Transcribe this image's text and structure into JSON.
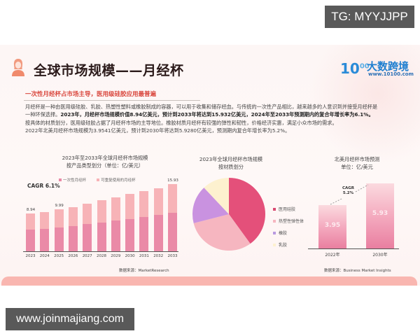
{
  "watermarks": {
    "top": "TG: MYYJJPP",
    "bottom": "www.joinmajiang.com"
  },
  "header": {
    "title": "全球市场规模——月经杯",
    "logo": {
      "mark": "10",
      "mark_sup": "00",
      "name": "大数跨境",
      "url": "www.10100.com"
    }
  },
  "section": {
    "subhead": "一次性月经杯占市场主导，医用级硅胶应用最普遍",
    "paragraph": {
      "line1": "月经杯是一种由医用级硅胶、乳胶、热塑性塑料或橡胶制成的容器，可以用于收集和储存经血。与传统的一次性产品相比，越来越多的人意识到并接受月经杯是",
      "line2_plain": "一种环保选择。",
      "line2_bold": "2023年，月经杯市场规模价值8.94亿美元，预计到2033年将达到15.932亿美元，2024年至2033年预测期内的复合年增长率为6.1%。",
      "line3": "按具体的材质划分，医用级硅胶占据了月经杯市场的主导地位。橡胶材质月经杯有较强的弹性和韧性，价格经济实惠，满足小众市场的需求。",
      "line4": "2022年北美月经杯市场规模为3.9541亿美元，预计到2030年将达到5.9280亿美元，预测期内复合年增长率为5.2%。"
    }
  },
  "colors": {
    "accent_red": "#d9463c",
    "bar_disposable": "#ea8aa7",
    "bar_reusable": "#f7b3b7",
    "pie_silicone": "#e4507a",
    "pie_tpe": "#f6b6c0",
    "pie_rubber": "#c992e0",
    "pie_latex": "#fdf1cf",
    "band": "#f9b6b0"
  },
  "chart_data": [
    {
      "type": "bar",
      "stacked": true,
      "title": "2023年至2033年全球月经杯市场规模",
      "subtitle": "按产品类型划分（单位：亿/美元）",
      "annotation": "CAGR 6.1%",
      "legend": [
        "一次性月经杯",
        "可重复使用的月经杯"
      ],
      "categories": [
        "2023",
        "2024",
        "2025",
        "2026",
        "2027",
        "2028",
        "2029",
        "2030",
        "2031",
        "2032",
        "2033"
      ],
      "totals": [
        8.94,
        9.3,
        9.99,
        10.5,
        11.4,
        12.1,
        12.8,
        13.6,
        14.3,
        15.0,
        15.93
      ],
      "series": [
        {
          "name": "一次性月经杯",
          "values": [
            5.1,
            5.3,
            5.7,
            6.0,
            6.5,
            6.9,
            7.3,
            7.7,
            8.2,
            8.6,
            9.1
          ]
        },
        {
          "name": "可重复使用的月经杯",
          "values": [
            3.84,
            4.0,
            4.29,
            4.5,
            4.9,
            5.2,
            5.5,
            5.9,
            6.1,
            6.4,
            6.83
          ]
        }
      ],
      "value_labels": {
        "2023": "8.94",
        "2025": "9.99",
        "2033": "15.93"
      },
      "xlabel": "",
      "ylabel": "亿/美元",
      "ylim": [
        0,
        17
      ],
      "source": "数据来源：MarketResearch"
    },
    {
      "type": "pie",
      "title": "2023年全球月经杯市场规模",
      "subtitle": "按材质划分",
      "labels": [
        "医用硅胶",
        "热塑性弹性体",
        "橡胶",
        "乳胶"
      ],
      "values": [
        40,
        31,
        17,
        12
      ],
      "legend_position": "right"
    },
    {
      "type": "bar",
      "title": "北美月经杯市场预测",
      "subtitle": "单位：亿/美元",
      "annotation": "CAGR\n5.2%",
      "categories": [
        "2022年",
        "2030年"
      ],
      "values": [
        3.95,
        5.93
      ],
      "value_labels": [
        "3.95",
        "5.93"
      ],
      "ylim": [
        0,
        6.5
      ],
      "source": "数据来源：Business Market Insights"
    }
  ],
  "labels": {
    "cagr_global": "CAGR 6.1%",
    "cagr_na_1": "CAGR",
    "cagr_na_2": "5.2%",
    "source_global": "数据来源：MarketResearch",
    "source_na": "数据来源：Business Market Insights",
    "bar_title_1": "2023年至2033年全球月经杯市场规模",
    "bar_title_2": "按产品类型划分（单位：亿/美元）",
    "legend_1": "一次性月经杯",
    "legend_2": "可重复使用的月经杯",
    "pie_title_1": "2023年全球月经杯市场规模",
    "pie_title_2": "按材质划分",
    "pie_legend": [
      "医用硅胶",
      "热塑性弹性体",
      "橡胶",
      "乳胶"
    ],
    "na_title_1": "北美月经杯市场预测",
    "na_title_2": "单位：亿/美元"
  }
}
